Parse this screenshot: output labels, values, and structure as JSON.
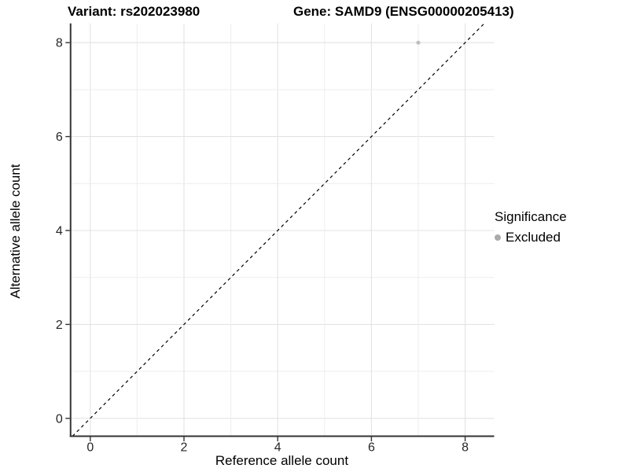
{
  "header": {
    "variant_title": "Variant: rs202023980",
    "gene_title": "Gene: SAMD9 (ENSG00000205413)"
  },
  "chart_data": {
    "type": "scatter",
    "title_left": "Variant: rs202023980",
    "title_right": "Gene: SAMD9 (ENSG00000205413)",
    "xlabel": "Reference allele count",
    "ylabel": "Alternative allele count",
    "x_ticks": [
      0,
      2,
      4,
      6,
      8
    ],
    "y_ticks": [
      0,
      2,
      4,
      6,
      8
    ],
    "xlim": [
      -0.42,
      8.62
    ],
    "ylim": [
      -0.38,
      8.41
    ],
    "grid": {
      "on": true,
      "integer_lines_from": 0,
      "integer_lines_to": 8,
      "major_every": 2,
      "major_color": "#e3e3e3",
      "minor_color": "#efefef",
      "background": "#ffffff"
    },
    "axis": {
      "line_color": "#333333",
      "tick_color": "#333333",
      "tick_label_color": "#262626",
      "tick_length": 5.5
    },
    "reference_line": {
      "type": "abline",
      "slope": 1,
      "intercept": 0,
      "style": "dashed",
      "color": "#000000"
    },
    "series": [
      {
        "name": "Excluded",
        "color": "#bfbfbf",
        "points": [
          {
            "x": 7,
            "y": 8
          }
        ]
      }
    ],
    "legend": {
      "title": "Significance",
      "position": "right",
      "items": [
        {
          "label": "Excluded",
          "color": "#ababab"
        }
      ]
    }
  }
}
